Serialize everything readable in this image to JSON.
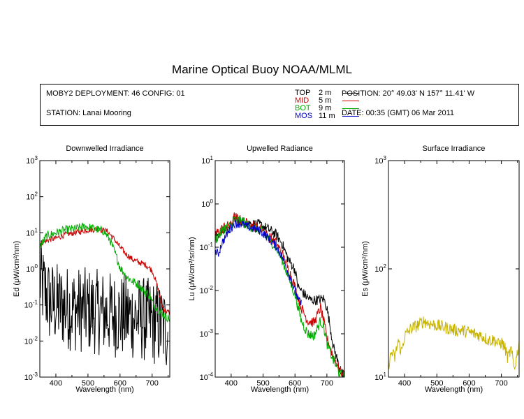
{
  "title": "Marine Optical Buoy NOAA/MLML",
  "info": {
    "deployment": "MOBY2 DEPLOYMENT: 46 CONFIG: 01",
    "station": "STATION: Lanai Mooring",
    "position": "POSITION: 20° 49.03' N  157° 11.41' W",
    "date": "DATE: 00:35 (GMT) 06 Mar 2011",
    "legend": [
      {
        "name": "TOP",
        "depth": "2  m",
        "color": "#000000"
      },
      {
        "name": "MID",
        "depth": "5  m",
        "color": "#cc0000"
      },
      {
        "name": "BOT",
        "depth": "9  m",
        "color": "#00aa00"
      },
      {
        "name": "MOS",
        "depth": "11  m",
        "color": "#0000cc"
      }
    ]
  },
  "chart_data": [
    {
      "type": "line",
      "title": "Downwelled Irradiance",
      "xlabel": "Wavelength (nm)",
      "ylabel": "Ed  (μW/cm²/nm)",
      "xlim": [
        350,
        755
      ],
      "ylim": [
        0.001,
        1000
      ],
      "yscale": "log",
      "xticks": [
        400,
        500,
        600,
        700
      ],
      "yticks": [
        {
          "value": 0.001,
          "base": "10",
          "exp": "-3"
        },
        {
          "value": 0.01,
          "base": "10",
          "exp": "-2"
        },
        {
          "value": 0.1,
          "base": "10",
          "exp": "-1"
        },
        {
          "value": 1,
          "base": "10",
          "exp": "0"
        },
        {
          "value": 10,
          "base": "10",
          "exp": "1"
        },
        {
          "value": 100,
          "base": "10",
          "exp": "2"
        },
        {
          "value": 1000,
          "base": "10",
          "exp": "3"
        }
      ],
      "series": [
        {
          "name": "TOP",
          "color": "#000000",
          "noise": 1.2,
          "points": [
            [
              350,
              0.5
            ],
            [
              360,
              0.3
            ],
            [
              370,
              0.2
            ],
            [
              380,
              0.12
            ],
            [
              400,
              0.1
            ],
            [
              450,
              0.08
            ],
            [
              500,
              0.07
            ],
            [
              550,
              0.06
            ],
            [
              600,
              0.05
            ],
            [
              650,
              0.045
            ],
            [
              700,
              0.035
            ],
            [
              750,
              0.02
            ]
          ]
        },
        {
          "name": "MID",
          "color": "#cc0000",
          "noise": 0.08,
          "points": [
            [
              350,
              5
            ],
            [
              380,
              6.5
            ],
            [
              400,
              7
            ],
            [
              430,
              9
            ],
            [
              460,
              10
            ],
            [
              500,
              12
            ],
            [
              530,
              12.5
            ],
            [
              560,
              11
            ],
            [
              580,
              7
            ],
            [
              600,
              4
            ],
            [
              620,
              2.5
            ],
            [
              640,
              1.8
            ],
            [
              660,
              1.5
            ],
            [
              680,
              1.3
            ],
            [
              700,
              0.9
            ],
            [
              710,
              0.5
            ],
            [
              720,
              0.25
            ],
            [
              730,
              0.1
            ],
            [
              740,
              0.07
            ],
            [
              755,
              0.06
            ]
          ]
        },
        {
          "name": "BOT",
          "color": "#00aa00",
          "noise": 0.12,
          "points": [
            [
              350,
              4
            ],
            [
              370,
              8
            ],
            [
              400,
              10
            ],
            [
              430,
              12
            ],
            [
              460,
              13
            ],
            [
              490,
              15
            ],
            [
              520,
              13
            ],
            [
              550,
              11
            ],
            [
              570,
              6
            ],
            [
              590,
              2
            ],
            [
              600,
              1.1
            ],
            [
              620,
              0.6
            ],
            [
              640,
              0.45
            ],
            [
              660,
              0.35
            ],
            [
              680,
              0.22
            ],
            [
              690,
              0.2
            ],
            [
              700,
              0.12
            ],
            [
              720,
              0.07
            ],
            [
              740,
              0.05
            ],
            [
              755,
              0.04
            ]
          ]
        }
      ]
    },
    {
      "type": "line",
      "title": "Upwelled Radiance",
      "xlabel": "Wavelength (nm)",
      "ylabel": "Lu  (μW/cm²/sr/nm)",
      "xlim": [
        350,
        755
      ],
      "ylim": [
        0.0001,
        10
      ],
      "yscale": "log",
      "xticks": [
        400,
        500,
        600,
        700
      ],
      "yticks": [
        {
          "value": 0.0001,
          "base": "10",
          "exp": "-4"
        },
        {
          "value": 0.001,
          "base": "10",
          "exp": "-3"
        },
        {
          "value": 0.01,
          "base": "10",
          "exp": "-2"
        },
        {
          "value": 0.1,
          "base": "10",
          "exp": "-1"
        },
        {
          "value": 1,
          "base": "10",
          "exp": "0"
        },
        {
          "value": 10,
          "base": "10",
          "exp": "1"
        }
      ],
      "series": [
        {
          "name": "TOP",
          "color": "#000000",
          "noise": 0.12,
          "points": [
            [
              350,
              0.18
            ],
            [
              380,
              0.25
            ],
            [
              400,
              0.3
            ],
            [
              410,
              0.45
            ],
            [
              430,
              0.4
            ],
            [
              460,
              0.35
            ],
            [
              490,
              0.33
            ],
            [
              510,
              0.28
            ],
            [
              540,
              0.2
            ],
            [
              560,
              0.12
            ],
            [
              580,
              0.05
            ],
            [
              590,
              0.04
            ],
            [
              600,
              0.03
            ],
            [
              610,
              0.012
            ],
            [
              630,
              0.008
            ],
            [
              650,
              0.006
            ],
            [
              670,
              0.006
            ],
            [
              690,
              0.0065
            ],
            [
              700,
              0.004
            ],
            [
              710,
              0.0015
            ],
            [
              720,
              0.0005
            ],
            [
              730,
              0.0003
            ],
            [
              740,
              0.00015
            ],
            [
              755,
              0.0001
            ]
          ]
        },
        {
          "name": "MID",
          "color": "#cc0000",
          "noise": 0.12,
          "points": [
            [
              350,
              0.2
            ],
            [
              380,
              0.3
            ],
            [
              400,
              0.32
            ],
            [
              410,
              0.5
            ],
            [
              430,
              0.42
            ],
            [
              460,
              0.32
            ],
            [
              490,
              0.28
            ],
            [
              510,
              0.2
            ],
            [
              540,
              0.13
            ],
            [
              560,
              0.07
            ],
            [
              580,
              0.03
            ],
            [
              590,
              0.02
            ],
            [
              600,
              0.012
            ],
            [
              620,
              0.004
            ],
            [
              640,
              0.002
            ],
            [
              660,
              0.0018
            ],
            [
              680,
              0.004
            ],
            [
              690,
              0.002
            ],
            [
              700,
              0.0008
            ],
            [
              720,
              0.0003
            ],
            [
              740,
              0.00015
            ],
            [
              755,
              0.0001
            ]
          ]
        },
        {
          "name": "BOT",
          "color": "#00aa00",
          "noise": 0.12,
          "points": [
            [
              350,
              0.15
            ],
            [
              380,
              0.28
            ],
            [
              400,
              0.3
            ],
            [
              410,
              0.45
            ],
            [
              430,
              0.4
            ],
            [
              460,
              0.3
            ],
            [
              490,
              0.25
            ],
            [
              510,
              0.18
            ],
            [
              540,
              0.1
            ],
            [
              560,
              0.05
            ],
            [
              580,
              0.02
            ],
            [
              600,
              0.008
            ],
            [
              620,
              0.002
            ],
            [
              640,
              0.001
            ],
            [
              660,
              0.0009
            ],
            [
              680,
              0.002
            ],
            [
              690,
              0.0015
            ],
            [
              700,
              0.0006
            ],
            [
              720,
              0.00025
            ],
            [
              740,
              0.00012
            ],
            [
              755,
              0.0001
            ]
          ]
        },
        {
          "name": "MOS",
          "color": "#0000cc",
          "noise": 0.1,
          "points": [
            [
              350,
              0.08
            ],
            [
              360,
              0.07
            ],
            [
              370,
              0.12
            ],
            [
              390,
              0.22
            ],
            [
              410,
              0.35
            ],
            [
              430,
              0.35
            ],
            [
              460,
              0.28
            ],
            [
              490,
              0.24
            ],
            [
              510,
              0.18
            ],
            [
              540,
              0.11
            ],
            [
              560,
              0.06
            ],
            [
              580,
              0.025
            ],
            [
              600,
              0.01
            ],
            [
              610,
              0.006
            ],
            [
              620,
              0.005
            ]
          ]
        }
      ]
    },
    {
      "type": "line",
      "title": "Surface Irradiance",
      "xlabel": "Wavelength (nm)",
      "ylabel": "Es  (μW/cm²/nm)",
      "xlim": [
        350,
        755
      ],
      "ylim": [
        10,
        1000
      ],
      "yscale": "log",
      "xticks": [
        400,
        500,
        600,
        700
      ],
      "yticks": [
        {
          "value": 10,
          "base": "10",
          "exp": "1"
        },
        {
          "value": 100,
          "base": "10",
          "exp": "2"
        },
        {
          "value": 1000,
          "base": "10",
          "exp": "3"
        }
      ],
      "series": [
        {
          "name": "",
          "color": "#c8b400",
          "noise": 0.06,
          "points": [
            [
              350,
              13
            ],
            [
              360,
              17
            ],
            [
              370,
              15
            ],
            [
              380,
              22
            ],
            [
              390,
              17
            ],
            [
              400,
              24
            ],
            [
              420,
              28
            ],
            [
              440,
              30
            ],
            [
              460,
              33
            ],
            [
              480,
              31
            ],
            [
              500,
              30
            ],
            [
              520,
              29
            ],
            [
              540,
              28
            ],
            [
              560,
              27
            ],
            [
              580,
              27
            ],
            [
              600,
              26
            ],
            [
              620,
              25
            ],
            [
              640,
              24
            ],
            [
              660,
              22
            ],
            [
              680,
              22
            ],
            [
              690,
              20
            ],
            [
              700,
              21
            ],
            [
              710,
              19
            ],
            [
              720,
              15
            ],
            [
              730,
              18
            ],
            [
              740,
              12
            ],
            [
              750,
              17
            ],
            [
              755,
              20
            ]
          ]
        }
      ]
    }
  ]
}
